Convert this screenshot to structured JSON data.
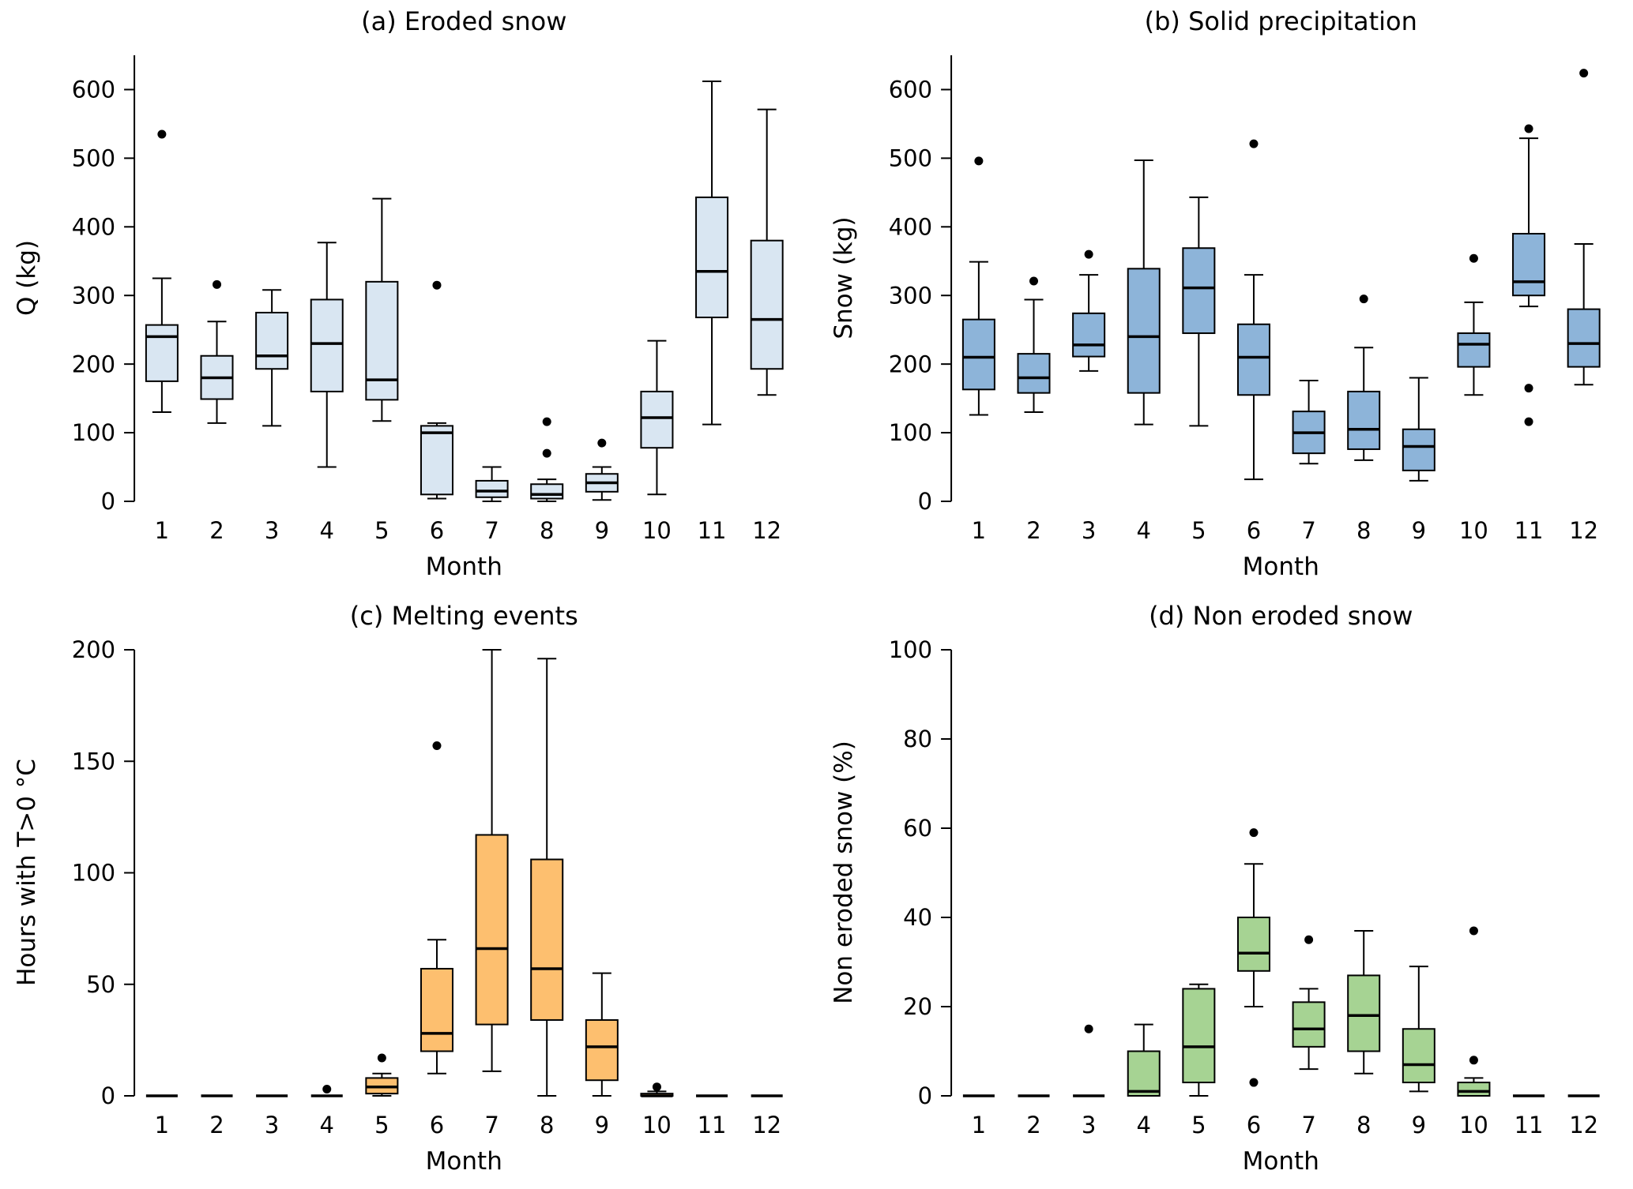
{
  "figure": {
    "background": "#ffffff",
    "text_color": "#000000"
  },
  "chart_data": [
    {
      "type": "boxplot",
      "panel": "a",
      "title": "(a) Eroded snow",
      "xlabel": "Month",
      "ylabel": "Q (kg)",
      "categories": [
        "1",
        "2",
        "3",
        "4",
        "5",
        "6",
        "7",
        "8",
        "9",
        "10",
        "11",
        "12"
      ],
      "ylim": [
        0,
        650
      ],
      "yticks": [
        0,
        100,
        200,
        300,
        400,
        500,
        600
      ],
      "grid": false,
      "legend": "none",
      "box_fill": "#d9e6f2",
      "stroke": "#000000",
      "boxes": [
        {
          "whislo": 130,
          "q1": 175,
          "med": 240,
          "q3": 257,
          "whishi": 325,
          "outliers": [
            535
          ]
        },
        {
          "whislo": 114,
          "q1": 149,
          "med": 180,
          "q3": 212,
          "whishi": 262,
          "outliers": [
            316
          ]
        },
        {
          "whislo": 110,
          "q1": 193,
          "med": 212,
          "q3": 275,
          "whishi": 308,
          "outliers": []
        },
        {
          "whislo": 50,
          "q1": 160,
          "med": 230,
          "q3": 294,
          "whishi": 377,
          "outliers": []
        },
        {
          "whislo": 117,
          "q1": 148,
          "med": 177,
          "q3": 320,
          "whishi": 441,
          "outliers": []
        },
        {
          "whislo": 4,
          "q1": 10,
          "med": 100,
          "q3": 110,
          "whishi": 114,
          "outliers": [
            315
          ]
        },
        {
          "whislo": 0,
          "q1": 6,
          "med": 15,
          "q3": 30,
          "whishi": 50,
          "outliers": []
        },
        {
          "whislo": 0,
          "q1": 4,
          "med": 10,
          "q3": 25,
          "whishi": 32,
          "outliers": [
            70,
            116
          ]
        },
        {
          "whislo": 2,
          "q1": 14,
          "med": 27,
          "q3": 40,
          "whishi": 50,
          "outliers": [
            85
          ]
        },
        {
          "whislo": 10,
          "q1": 78,
          "med": 122,
          "q3": 160,
          "whishi": 234,
          "outliers": []
        },
        {
          "whislo": 112,
          "q1": 268,
          "med": 335,
          "q3": 443,
          "whishi": 612,
          "outliers": []
        },
        {
          "whislo": 155,
          "q1": 193,
          "med": 265,
          "q3": 380,
          "whishi": 571,
          "outliers": []
        }
      ]
    },
    {
      "type": "boxplot",
      "panel": "b",
      "title": "(b) Solid precipitation",
      "xlabel": "Month",
      "ylabel": "Snow (kg)",
      "categories": [
        "1",
        "2",
        "3",
        "4",
        "5",
        "6",
        "7",
        "8",
        "9",
        "10",
        "11",
        "12"
      ],
      "ylim": [
        0,
        650
      ],
      "yticks": [
        0,
        100,
        200,
        300,
        400,
        500,
        600
      ],
      "grid": false,
      "legend": "none",
      "box_fill": "#8db4d9",
      "stroke": "#000000",
      "boxes": [
        {
          "whislo": 126,
          "q1": 163,
          "med": 210,
          "q3": 265,
          "whishi": 349,
          "outliers": [
            496
          ]
        },
        {
          "whislo": 130,
          "q1": 158,
          "med": 180,
          "q3": 215,
          "whishi": 294,
          "outliers": [
            321
          ]
        },
        {
          "whislo": 190,
          "q1": 211,
          "med": 228,
          "q3": 274,
          "whishi": 330,
          "outliers": [
            360
          ]
        },
        {
          "whislo": 112,
          "q1": 158,
          "med": 240,
          "q3": 339,
          "whishi": 497,
          "outliers": []
        },
        {
          "whislo": 110,
          "q1": 245,
          "med": 311,
          "q3": 369,
          "whishi": 443,
          "outliers": []
        },
        {
          "whislo": 32,
          "q1": 155,
          "med": 210,
          "q3": 258,
          "whishi": 330,
          "outliers": [
            521
          ]
        },
        {
          "whislo": 55,
          "q1": 70,
          "med": 100,
          "q3": 131,
          "whishi": 176,
          "outliers": []
        },
        {
          "whislo": 60,
          "q1": 76,
          "med": 105,
          "q3": 160,
          "whishi": 224,
          "outliers": [
            295
          ]
        },
        {
          "whislo": 30,
          "q1": 45,
          "med": 80,
          "q3": 105,
          "whishi": 180,
          "outliers": []
        },
        {
          "whislo": 155,
          "q1": 196,
          "med": 229,
          "q3": 245,
          "whishi": 290,
          "outliers": [
            354
          ]
        },
        {
          "whislo": 284,
          "q1": 300,
          "med": 320,
          "q3": 390,
          "whishi": 529,
          "outliers": [
            543,
            165,
            116
          ]
        },
        {
          "whislo": 170,
          "q1": 196,
          "med": 230,
          "q3": 280,
          "whishi": 375,
          "outliers": [
            624
          ]
        }
      ]
    },
    {
      "type": "boxplot",
      "panel": "c",
      "title": "(c) Melting events",
      "xlabel": "Month",
      "ylabel": "Hours with T>0 °C",
      "categories": [
        "1",
        "2",
        "3",
        "4",
        "5",
        "6",
        "7",
        "8",
        "9",
        "10",
        "11",
        "12"
      ],
      "ylim": [
        0,
        200
      ],
      "yticks": [
        0,
        50,
        100,
        150,
        200
      ],
      "grid": false,
      "legend": "none",
      "box_fill": "#fdbf6f",
      "stroke": "#000000",
      "boxes": [
        {
          "whislo": 0,
          "q1": 0,
          "med": 0,
          "q3": 0,
          "whishi": 0,
          "outliers": []
        },
        {
          "whislo": 0,
          "q1": 0,
          "med": 0,
          "q3": 0,
          "whishi": 0,
          "outliers": []
        },
        {
          "whislo": 0,
          "q1": 0,
          "med": 0,
          "q3": 0,
          "whishi": 0,
          "outliers": []
        },
        {
          "whislo": 0,
          "q1": 0,
          "med": 0,
          "q3": 0,
          "whishi": 0,
          "outliers": [
            3
          ]
        },
        {
          "whislo": 0,
          "q1": 1,
          "med": 4,
          "q3": 8,
          "whishi": 10,
          "outliers": [
            17
          ]
        },
        {
          "whislo": 10,
          "q1": 20,
          "med": 28,
          "q3": 57,
          "whishi": 70,
          "outliers": [
            157
          ]
        },
        {
          "whislo": 11,
          "q1": 32,
          "med": 66,
          "q3": 117,
          "whishi": 200,
          "outliers": []
        },
        {
          "whislo": 0,
          "q1": 34,
          "med": 57,
          "q3": 106,
          "whishi": 196,
          "outliers": []
        },
        {
          "whislo": 0,
          "q1": 7,
          "med": 22,
          "q3": 34,
          "whishi": 55,
          "outliers": []
        },
        {
          "whislo": 0,
          "q1": 0,
          "med": 0,
          "q3": 1,
          "whishi": 2,
          "outliers": [
            4
          ]
        },
        {
          "whislo": 0,
          "q1": 0,
          "med": 0,
          "q3": 0,
          "whishi": 0,
          "outliers": []
        },
        {
          "whislo": 0,
          "q1": 0,
          "med": 0,
          "q3": 0,
          "whishi": 0,
          "outliers": []
        }
      ]
    },
    {
      "type": "boxplot",
      "panel": "d",
      "title": "(d) Non eroded snow",
      "xlabel": "Month",
      "ylabel": "Non eroded snow (%)",
      "categories": [
        "1",
        "2",
        "3",
        "4",
        "5",
        "6",
        "7",
        "8",
        "9",
        "10",
        "11",
        "12"
      ],
      "ylim": [
        0,
        100
      ],
      "yticks": [
        0,
        20,
        40,
        60,
        80,
        100
      ],
      "grid": false,
      "legend": "none",
      "box_fill": "#a6d393",
      "stroke": "#000000",
      "boxes": [
        {
          "whislo": 0,
          "q1": 0,
          "med": 0,
          "q3": 0,
          "whishi": 0,
          "outliers": []
        },
        {
          "whislo": 0,
          "q1": 0,
          "med": 0,
          "q3": 0,
          "whishi": 0,
          "outliers": []
        },
        {
          "whislo": 0,
          "q1": 0,
          "med": 0,
          "q3": 0,
          "whishi": 0,
          "outliers": [
            15
          ]
        },
        {
          "whislo": 0,
          "q1": 0,
          "med": 1,
          "q3": 10,
          "whishi": 16,
          "outliers": []
        },
        {
          "whislo": 0,
          "q1": 3,
          "med": 11,
          "q3": 24,
          "whishi": 25,
          "outliers": []
        },
        {
          "whislo": 20,
          "q1": 28,
          "med": 32,
          "q3": 40,
          "whishi": 52,
          "outliers": [
            59,
            3
          ]
        },
        {
          "whislo": 6,
          "q1": 11,
          "med": 15,
          "q3": 21,
          "whishi": 24,
          "outliers": [
            35
          ]
        },
        {
          "whislo": 5,
          "q1": 10,
          "med": 18,
          "q3": 27,
          "whishi": 37,
          "outliers": []
        },
        {
          "whislo": 1,
          "q1": 3,
          "med": 7,
          "q3": 15,
          "whishi": 29,
          "outliers": []
        },
        {
          "whislo": 0,
          "q1": 0,
          "med": 1,
          "q3": 3,
          "whishi": 4,
          "outliers": [
            8,
            37
          ]
        },
        {
          "whislo": 0,
          "q1": 0,
          "med": 0,
          "q3": 0,
          "whishi": 0,
          "outliers": []
        },
        {
          "whislo": 0,
          "q1": 0,
          "med": 0,
          "q3": 0,
          "whishi": 0,
          "outliers": []
        }
      ]
    }
  ]
}
